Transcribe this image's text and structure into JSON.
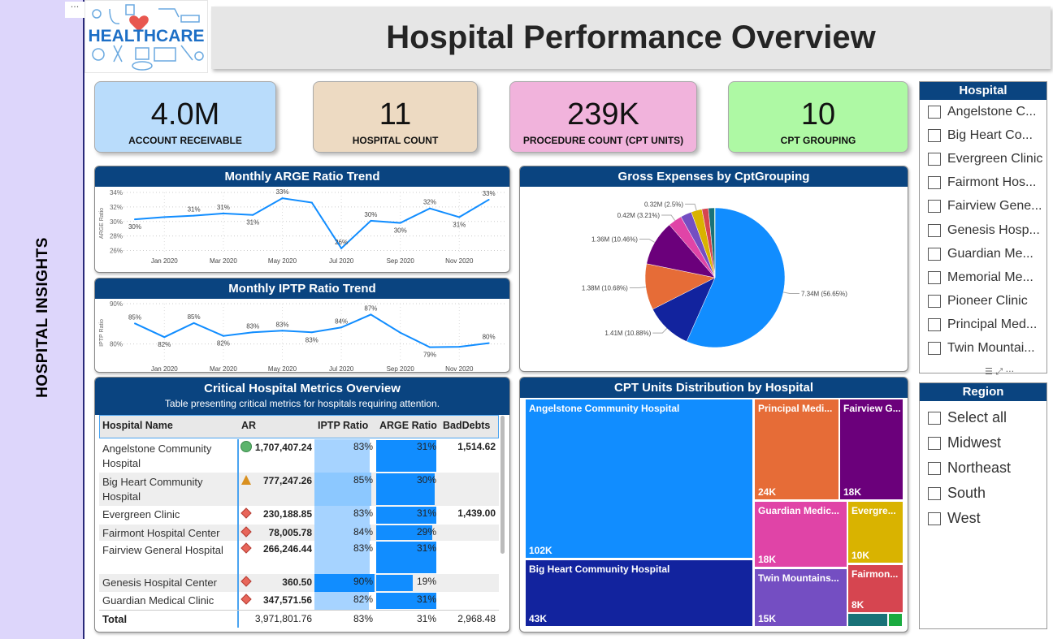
{
  "sidebar": {
    "label": "HOSPITAL INSIGHTS",
    "menu": "···"
  },
  "logo": {
    "text": "HEALTHCARE"
  },
  "header": {
    "title": "Hospital Performance Overview"
  },
  "kpis": [
    {
      "value": "4.0M",
      "label": "ACCOUNT RECEIVABLE",
      "color": "#b9dcfb"
    },
    {
      "value": "11",
      "label": "HOSPITAL COUNT",
      "color": "#eddac2"
    },
    {
      "value": "239K",
      "label": "PROCEDURE COUNT (CPT UNITS)",
      "color": "#f1b3dc"
    },
    {
      "value": "10",
      "label": "CPT GROUPING",
      "color": "#aef9a4"
    }
  ],
  "chart_data": [
    {
      "type": "line",
      "title": "Monthly ARGE Ratio Trend",
      "ylabel": "ARGE Ratio",
      "ylim": [
        25.5,
        34
      ],
      "yticks": [
        "26%",
        "28%",
        "30%",
        "32%",
        "34%"
      ],
      "xticks": [
        "Jan 2020",
        "Mar 2020",
        "May 2020",
        "Jul 2020",
        "Sep 2020",
        "Nov 2020"
      ],
      "x": [
        "Dec 2019",
        "Jan 2020",
        "Feb 2020",
        "Mar 2020",
        "Apr 2020",
        "May 2020",
        "Jun 2020",
        "Jul 2020",
        "Aug 2020",
        "Sep 2020",
        "Oct 2020",
        "Nov 2020",
        "Dec 2020"
      ],
      "values": [
        30.3,
        30.6,
        30.8,
        31.1,
        30.9,
        33.2,
        32.6,
        26.3,
        30.1,
        29.8,
        31.8,
        30.6,
        33.0
      ],
      "labels": [
        "30%",
        "",
        "31%",
        "31%",
        "31%",
        "33%",
        "",
        "26%",
        "30%",
        "30%",
        "32%",
        "31%",
        "33%"
      ],
      "grid": true,
      "color": "#118dff"
    },
    {
      "type": "line",
      "title": "Monthly IPTP Ratio Trend",
      "ylabel": "IPTP Ratio",
      "ylim": [
        75.5,
        90
      ],
      "yticks": [
        "80%",
        "90%"
      ],
      "xticks": [
        "Jan 2020",
        "Mar 2020",
        "May 2020",
        "Jul 2020",
        "Sep 2020",
        "Nov 2020"
      ],
      "x": [
        "Dec 2019",
        "Jan 2020",
        "Feb 2020",
        "Mar 2020",
        "Apr 2020",
        "May 2020",
        "Jun 2020",
        "Jul 2020",
        "Aug 2020",
        "Sep 2020",
        "Oct 2020",
        "Nov 2020",
        "Dec 2020"
      ],
      "values": [
        85.1,
        81.7,
        85.2,
        82.0,
        82.9,
        83.3,
        82.9,
        84.1,
        87.3,
        82.8,
        79.2,
        79.3,
        80.2
      ],
      "labels": [
        "85%",
        "82%",
        "85%",
        "82%",
        "83%",
        "83%",
        "83%",
        "84%",
        "87%",
        "",
        "79%",
        "",
        "80%"
      ],
      "grid": true,
      "color": "#118dff"
    },
    {
      "type": "pie",
      "title": "Gross Expenses by CptGrouping",
      "values": [
        56.65,
        10.88,
        10.68,
        10.46,
        3.21,
        2.6,
        2.5,
        1.5,
        1.4,
        0.12
      ],
      "labels": [
        "7.34M (56.65%)",
        "1.41M (10.88%)",
        "1.38M (10.68%)",
        "1.36M (10.46%)",
        "0.42M (3.21%)",
        "",
        "0.32M (2.5%)",
        "",
        "",
        ""
      ],
      "colors": [
        "#118dff",
        "#12239e",
        "#e66c37",
        "#6b007b",
        "#e044a7",
        "#744ec2",
        "#d9b300",
        "#d64550",
        "#197278",
        "#1aab40"
      ]
    },
    {
      "type": "treemap",
      "title": "CPT Units Distribution by Hospital",
      "items": [
        {
          "name": "Angelstone Community Hospital",
          "value": "102K",
          "color": "#118dff"
        },
        {
          "name": "Big Heart Community Hospital",
          "value": "43K",
          "color": "#12239e"
        },
        {
          "name": "Principal Medi...",
          "value": "24K",
          "color": "#e66c37"
        },
        {
          "name": "Fairview G...",
          "value": "18K",
          "color": "#6b007b"
        },
        {
          "name": "Guardian Medic...",
          "value": "18K",
          "color": "#e044a7"
        },
        {
          "name": "Evergre...",
          "value": "10K",
          "color": "#d9b300"
        },
        {
          "name": "Twin Mountains...",
          "value": "15K",
          "color": "#744ec2"
        },
        {
          "name": "Fairmon...",
          "value": "8K",
          "color": "#d64550"
        },
        {
          "name": "",
          "value": "",
          "color": "#197278"
        },
        {
          "name": "",
          "value": "",
          "color": "#1aab40"
        }
      ]
    }
  ],
  "table": {
    "title": "Critical Hospital Metrics Overview",
    "subtitle": "Table presenting critical metrics for hospitals requiring attention.",
    "columns": [
      "Hospital Name",
      "AR",
      "IPTP Ratio",
      "ARGE Ratio",
      "BadDebts"
    ],
    "rows": [
      {
        "name": "Angelstone Community Hospital",
        "icon": "circle-green",
        "ar": "1,707,407.24",
        "iptp": "83%",
        "iptp_v": 83,
        "arge": "31%",
        "arge_v": 31,
        "bad": "1,514.62"
      },
      {
        "name": "Big Heart Community Hospital",
        "icon": "triangle-amber",
        "ar": "777,247.26",
        "iptp": "85%",
        "iptp_v": 85,
        "arge": "30%",
        "arge_v": 30,
        "bad": ""
      },
      {
        "name": "Evergreen Clinic",
        "icon": "diamond-red",
        "ar": "230,188.85",
        "iptp": "83%",
        "iptp_v": 83,
        "arge": "31%",
        "arge_v": 31,
        "bad": "1,439.00"
      },
      {
        "name": "Fairmont Hospital Center",
        "icon": "diamond-red",
        "ar": "78,005.78",
        "iptp": "84%",
        "iptp_v": 84,
        "arge": "29%",
        "arge_v": 29,
        "bad": ""
      },
      {
        "name": "Fairview General Hospital",
        "icon": "diamond-red",
        "ar": "266,246.44",
        "iptp": "83%",
        "iptp_v": 83,
        "arge": "31%",
        "arge_v": 31,
        "bad": ""
      },
      {
        "name": "Genesis Hospital Center",
        "icon": "diamond-red",
        "ar": "360.50",
        "iptp": "90%",
        "iptp_v": 90,
        "arge": "19%",
        "arge_v": 19,
        "bad": ""
      },
      {
        "name": "Guardian Medical Clinic",
        "icon": "diamond-red",
        "ar": "347,571.56",
        "iptp": "82%",
        "iptp_v": 82,
        "arge": "31%",
        "arge_v": 31,
        "bad": ""
      }
    ],
    "total": {
      "name": "Total",
      "ar": "3,971,801.76",
      "iptp": "83%",
      "arge": "31%",
      "bad": "2,968.48"
    }
  },
  "hospital_slicer": {
    "title": "Hospital",
    "items": [
      "Angelstone C...",
      "Big Heart Co...",
      "Evergreen Clinic",
      "Fairmont Hos...",
      "Fairview Gene...",
      "Genesis Hosp...",
      "Guardian Me...",
      "Memorial Me...",
      "Pioneer Clinic",
      "Principal Med...",
      "Twin Mountai..."
    ]
  },
  "region_slicer": {
    "title": "Region",
    "items": [
      "Select all",
      "Midwest",
      "Northeast",
      "South",
      "West"
    ]
  }
}
